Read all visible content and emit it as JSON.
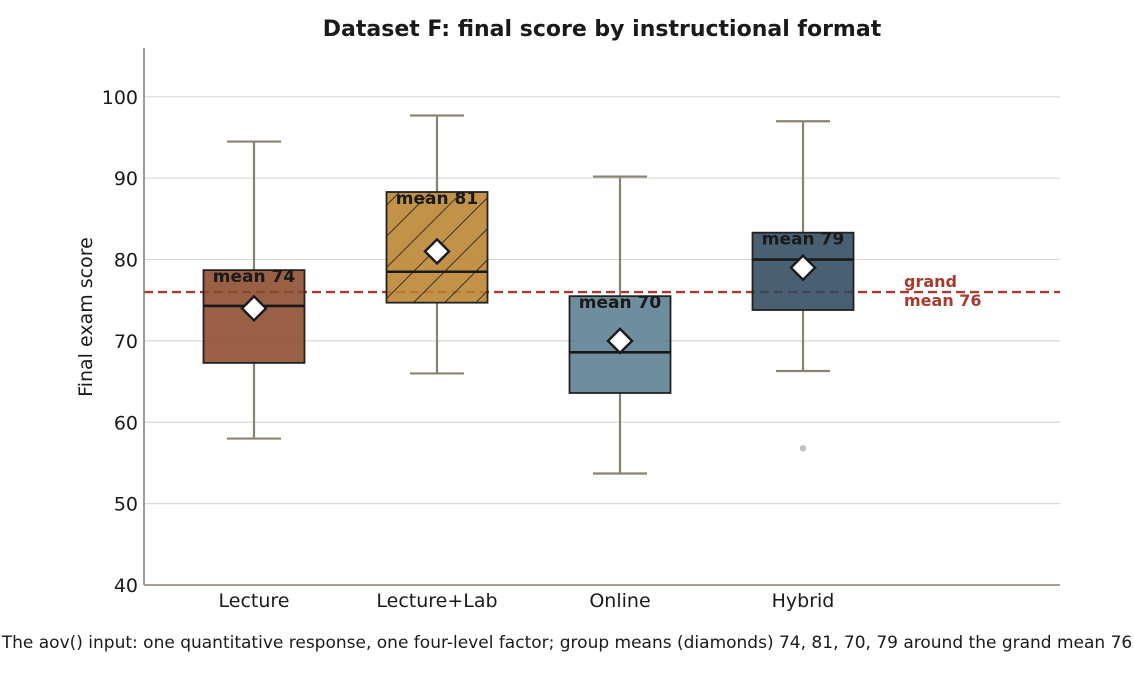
{
  "chart_data": {
    "type": "box",
    "title": "Dataset F: final score by instructional format",
    "xlabel": "",
    "ylabel": "Final exam score",
    "ylim": [
      40,
      106
    ],
    "yticks": [
      40,
      50,
      60,
      70,
      80,
      90,
      100
    ],
    "grid": "horizontal",
    "categories": [
      "Lecture",
      "Lecture+Lab",
      "Online",
      "Hybrid"
    ],
    "groups": [
      {
        "name": "Lecture",
        "whisker_low": 58,
        "q1": 67.3,
        "median": 74.3,
        "q3": 78.7,
        "whisker_high": 94.5,
        "mean": 74,
        "mean_label": "mean 74",
        "outliers": [],
        "color": "#8B4A2B",
        "hatch": false
      },
      {
        "name": "Lecture+Lab",
        "whisker_low": 66,
        "q1": 74.7,
        "median": 78.5,
        "q3": 88.3,
        "whisker_high": 97.7,
        "mean": 81,
        "mean_label": "mean 81",
        "outliers": [],
        "color": "#B98330",
        "hatch": true
      },
      {
        "name": "Online",
        "whisker_low": 53.7,
        "q1": 63.6,
        "median": 68.6,
        "q3": 75.5,
        "whisker_high": 90.2,
        "mean": 70,
        "mean_label": "mean 70",
        "outliers": [],
        "color": "#5A7D91",
        "hatch": false
      },
      {
        "name": "Hybrid",
        "whisker_low": 66.3,
        "q1": 73.8,
        "median": 80,
        "q3": 83.3,
        "whisker_high": 97,
        "mean": 79,
        "mean_label": "mean 79",
        "outliers": [
          56.8
        ],
        "color": "#2F4A5D",
        "hatch": false
      }
    ],
    "reference_line": {
      "value": 76,
      "label_line1": "grand",
      "label_line2": "mean 76",
      "color": "#A93A30"
    },
    "caption": "The aov() input: one quantitative response, one four-level factor; group means (diamonds) 74, 81, 70, 79 around the grand mean 76"
  }
}
